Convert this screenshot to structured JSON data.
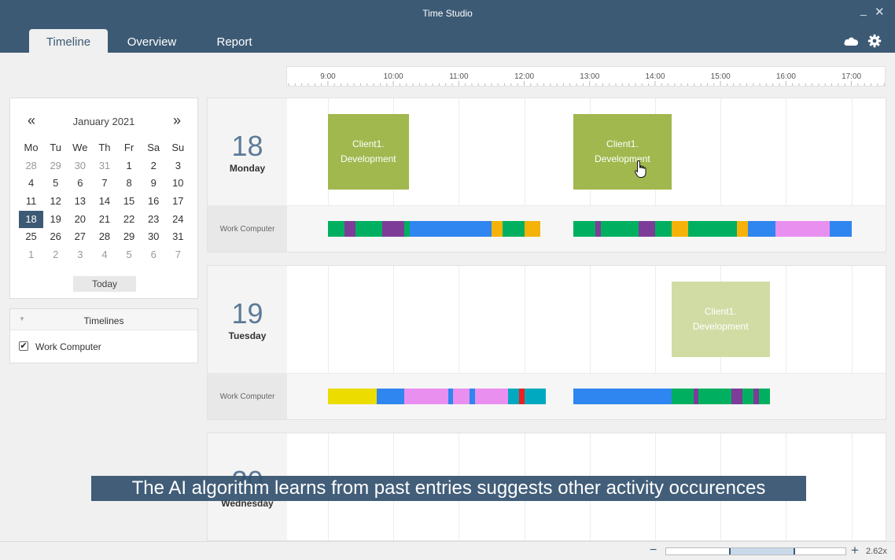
{
  "window": {
    "title": "Time Studio",
    "minimize": "_",
    "close": "✕"
  },
  "tabs": [
    {
      "label": "Timeline",
      "active": true
    },
    {
      "label": "Overview",
      "active": false
    },
    {
      "label": "Report",
      "active": false
    }
  ],
  "toolbar_icons": [
    "cloud-icon",
    "gear-icon"
  ],
  "ruler": {
    "hours": [
      "9:00",
      "10:00",
      "11:00",
      "12:00",
      "13:00",
      "14:00",
      "15:00",
      "16:00",
      "17:00"
    ]
  },
  "calendar": {
    "prev": "«",
    "next": "»",
    "month_label": "January 2021",
    "weekdays": [
      "Mo",
      "Tu",
      "We",
      "Th",
      "Fr",
      "Sa",
      "Su"
    ],
    "weeks": [
      [
        28,
        29,
        30,
        31,
        1,
        2,
        3
      ],
      [
        4,
        5,
        6,
        7,
        8,
        9,
        10
      ],
      [
        11,
        12,
        13,
        14,
        15,
        16,
        17
      ],
      [
        18,
        19,
        20,
        21,
        22,
        23,
        24
      ],
      [
        25,
        26,
        27,
        28,
        29,
        30,
        31
      ],
      [
        1,
        2,
        3,
        4,
        5,
        6,
        7
      ]
    ],
    "selected_day": 18,
    "today_label": "Today"
  },
  "timelines_panel": {
    "title": "Timelines",
    "items": [
      {
        "label": "Work Computer",
        "checked": true
      }
    ]
  },
  "colors": {
    "accent": "#3c5a74",
    "green": "#00b060",
    "purple": "#7d3c98",
    "blue": "#2f86f0",
    "orange": "#f5b30a",
    "pink": "#e98ff0",
    "yellow": "#ecdc00",
    "teal": "#00a9c0",
    "red": "#ee2020",
    "block": "#a0b84e",
    "block_suggested": "#d1dca4"
  },
  "days": [
    {
      "number": "18",
      "name": "Monday",
      "row_label": "Work Computer",
      "blocks": [
        {
          "line1": "Client1.",
          "line2": "Development",
          "start": "9:00",
          "end": "10:14",
          "suggested": false
        },
        {
          "line1": "Client1.",
          "line2": "Development",
          "start": "12:45",
          "end": "14:15",
          "suggested": false
        }
      ],
      "segments": [
        {
          "start": "9:00",
          "end": "9:15",
          "color": "green"
        },
        {
          "start": "9:15",
          "end": "9:25",
          "color": "purple"
        },
        {
          "start": "9:25",
          "end": "9:50",
          "color": "green"
        },
        {
          "start": "9:50",
          "end": "10:10",
          "color": "purple"
        },
        {
          "start": "10:10",
          "end": "10:15",
          "color": "green"
        },
        {
          "start": "10:15",
          "end": "11:30",
          "color": "blue"
        },
        {
          "start": "11:30",
          "end": "11:40",
          "color": "orange"
        },
        {
          "start": "11:40",
          "end": "12:00",
          "color": "green"
        },
        {
          "start": "12:00",
          "end": "12:15",
          "color": "orange"
        },
        {
          "start": "12:45",
          "end": "13:05",
          "color": "green"
        },
        {
          "start": "13:05",
          "end": "13:10",
          "color": "purple"
        },
        {
          "start": "13:10",
          "end": "13:45",
          "color": "green"
        },
        {
          "start": "13:45",
          "end": "14:00",
          "color": "purple"
        },
        {
          "start": "14:00",
          "end": "14:15",
          "color": "green"
        },
        {
          "start": "14:15",
          "end": "14:30",
          "color": "orange"
        },
        {
          "start": "14:30",
          "end": "15:15",
          "color": "green"
        },
        {
          "start": "15:15",
          "end": "15:25",
          "color": "orange"
        },
        {
          "start": "15:25",
          "end": "15:50",
          "color": "blue"
        },
        {
          "start": "15:50",
          "end": "16:40",
          "color": "pink"
        },
        {
          "start": "16:40",
          "end": "17:00",
          "color": "blue"
        }
      ]
    },
    {
      "number": "19",
      "name": "Tuesday",
      "row_label": "Work Computer",
      "blocks": [
        {
          "line1": "Client1.",
          "line2": "Development",
          "start": "14:15",
          "end": "15:45",
          "suggested": true
        }
      ],
      "segments": [
        {
          "start": "9:00",
          "end": "9:45",
          "color": "yellow"
        },
        {
          "start": "9:45",
          "end": "10:10",
          "color": "blue"
        },
        {
          "start": "10:10",
          "end": "10:50",
          "color": "pink"
        },
        {
          "start": "10:50",
          "end": "10:55",
          "color": "blue"
        },
        {
          "start": "10:55",
          "end": "11:10",
          "color": "pink"
        },
        {
          "start": "11:10",
          "end": "11:15",
          "color": "blue"
        },
        {
          "start": "11:15",
          "end": "11:45",
          "color": "pink"
        },
        {
          "start": "11:45",
          "end": "11:55",
          "color": "teal"
        },
        {
          "start": "11:55",
          "end": "12:00",
          "color": "red"
        },
        {
          "start": "12:00",
          "end": "12:20",
          "color": "teal"
        },
        {
          "start": "12:45",
          "end": "14:15",
          "color": "blue"
        },
        {
          "start": "14:15",
          "end": "14:35",
          "color": "green"
        },
        {
          "start": "14:35",
          "end": "14:40",
          "color": "purple"
        },
        {
          "start": "14:40",
          "end": "15:10",
          "color": "green"
        },
        {
          "start": "15:10",
          "end": "15:20",
          "color": "purple"
        },
        {
          "start": "15:20",
          "end": "15:30",
          "color": "green"
        },
        {
          "start": "15:30",
          "end": "15:35",
          "color": "purple"
        },
        {
          "start": "15:35",
          "end": "15:45",
          "color": "green"
        }
      ]
    },
    {
      "number": "20",
      "name": "Wednesday",
      "row_label": "",
      "blocks": [],
      "segments": []
    }
  ],
  "caption": "The AI algorithm learns from past entries suggests other activity occurences",
  "zoom": {
    "minus": "−",
    "plus": "+",
    "level": "2.62x",
    "range_start": 0.35,
    "range_end": 0.72
  }
}
